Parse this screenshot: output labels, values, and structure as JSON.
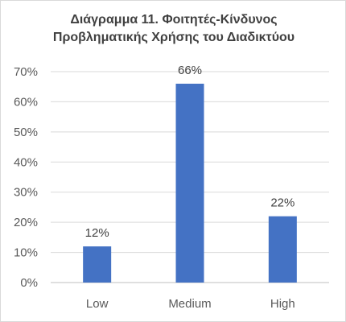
{
  "chart_data": {
    "type": "bar",
    "title_line1": "Διάγραμμα 11. Φοιτητές-Κίνδυνος",
    "title_line2": "Προβληματικής Χρήσης του Διαδικτύου",
    "categories": [
      "Low",
      "Medium",
      "High"
    ],
    "values": [
      12,
      66,
      22
    ],
    "data_labels": [
      "12%",
      "66%",
      "22%"
    ],
    "ylim": [
      0,
      70
    ],
    "yticks": [
      0,
      10,
      20,
      30,
      40,
      50,
      60,
      70
    ],
    "ytick_labels": [
      "0%",
      "10%",
      "20%",
      "30%",
      "40%",
      "50%",
      "60%",
      "70%"
    ],
    "grid": true,
    "legend": false,
    "bar_color": "#4472c4",
    "grid_color": "#d9d9d9"
  }
}
